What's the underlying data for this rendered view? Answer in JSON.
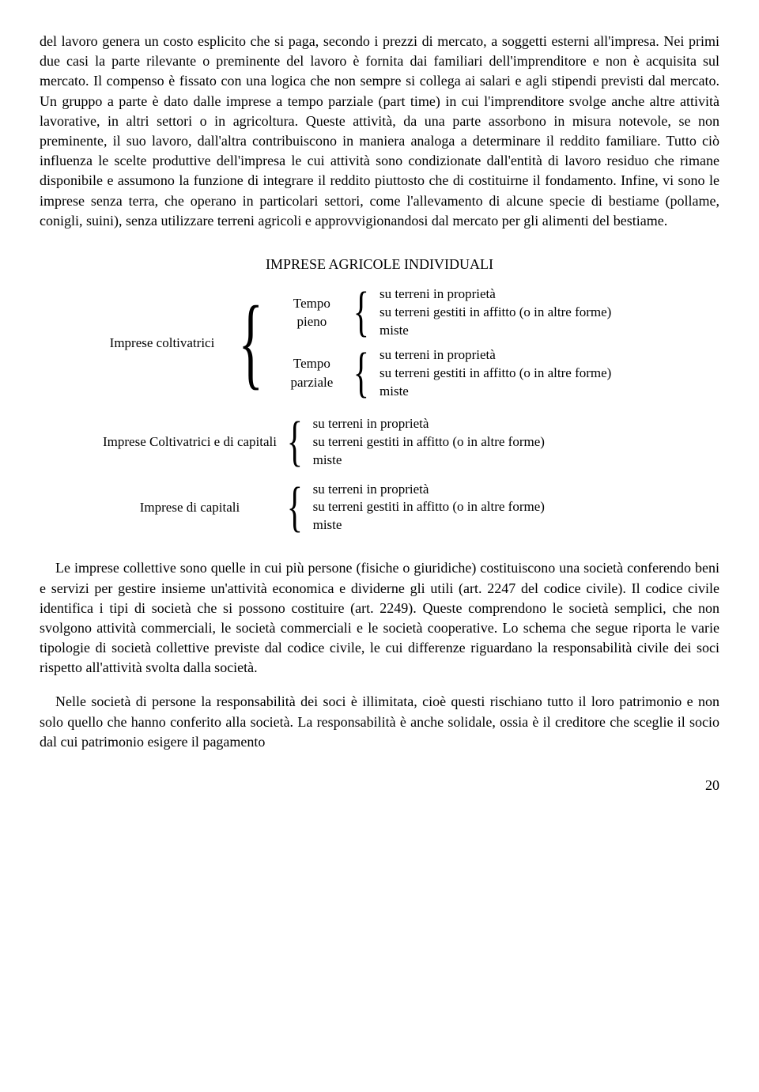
{
  "paragraphs": {
    "p1": "del lavoro genera un costo esplicito che si paga, secondo i prezzi di mercato, a soggetti esterni all'impresa. Nei primi due casi la parte rilevante o preminente del lavoro è fornita dai familiari dell'imprenditore e non è acquisita sul mercato. Il compenso è fissato con una logica che non sempre si collega ai salari e agli stipendi previsti dal mercato. Un gruppo a parte è dato dalle imprese a tempo parziale (part time) in cui l'imprenditore svolge anche altre attività lavorative, in altri settori o in agricoltura. Queste attività, da una parte assorbono in misura notevole, se non preminente, il suo lavoro, dall'altra contribuiscono in maniera analoga a determinare il reddito familiare. Tutto ciò influenza le scelte produttive dell'impresa le cui attività sono condizionate dall'entità di lavoro residuo che rimane disponibile e assumono la funzione di integrare il reddito piuttosto che di costituirne il fondamento. Infine, vi sono le imprese senza terra, che operano in particolari settori, come l'allevamento di alcune specie di bestiame (pollame, conigli, suini), senza utilizzare terreni agricoli e approvvigionandosi dal mercato per gli alimenti del bestiame.",
    "p2": "Le imprese collettive sono quelle in cui più persone (fisiche o giuridiche) costituiscono una società conferendo beni e servizi per gestire insieme un'attività economica e dividerne gli utili (art. 2247 del codice civile). Il codice civile identifica i tipi di società che si possono costituire (art. 2249). Queste comprendono le società semplici, che non svolgono attività commerciali, le società commerciali e le società cooperative. Lo schema che segue riporta le varie tipologie di società collettive previste dal codice civile, le cui differenze riguardano la responsabilità civile dei soci rispetto all'attività svolta dalla società.",
    "p3": "Nelle società di persone la responsabilità dei soci è illimitata, cioè questi rischiano tutto il loro patrimonio e non solo quello che hanno conferito alla società. La responsabilità è anche solidale, ossia è il creditore che sceglie il socio dal cui patrimonio esigere il pagamento"
  },
  "diagram": {
    "title": "IMPRESE AGRICOLE INDIVIDUALI",
    "group1": "Imprese coltivatrici",
    "group1_sub1": "Tempo pieno",
    "group1_sub2": "Tempo parziale",
    "group2": "Imprese Coltivatrici e di capitali",
    "group3": "Imprese di capitali",
    "leaf1": "su terreni in proprietà",
    "leaf2": "su terreni gestiti in affitto (o in altre forme)",
    "leaf3": "miste"
  },
  "page_number": "20"
}
